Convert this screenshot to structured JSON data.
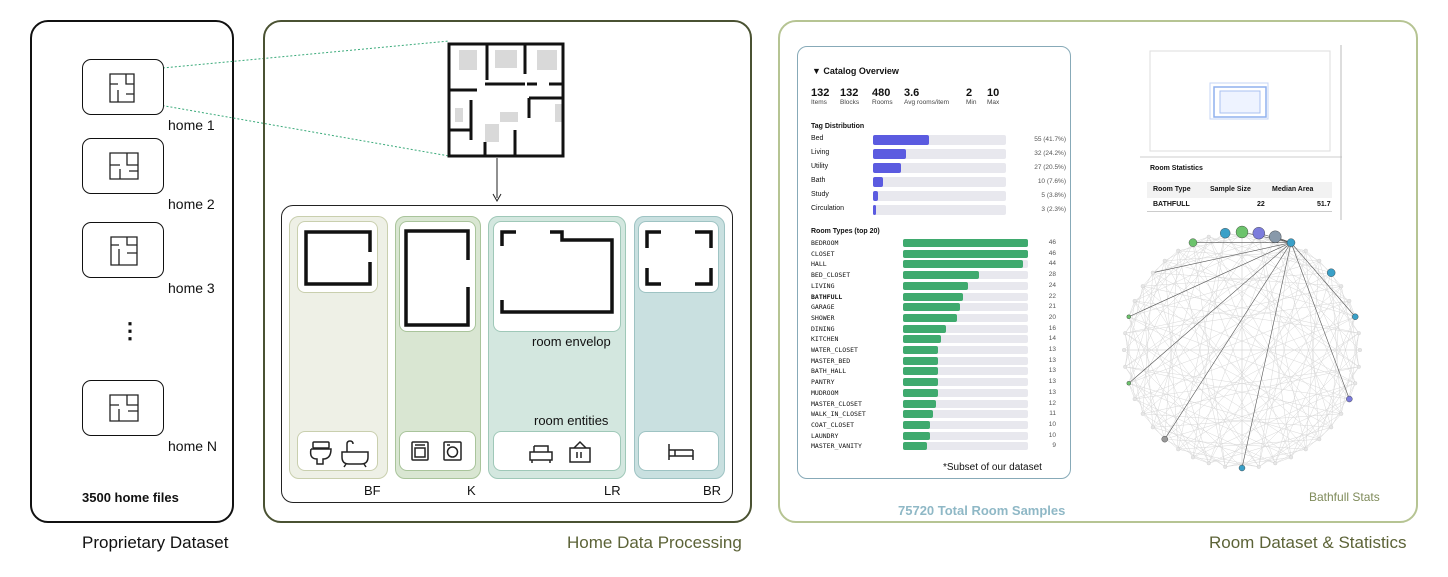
{
  "panel1": {
    "homes": [
      "home 1",
      "home 2",
      "home 3",
      "home N"
    ],
    "ellipsis": "⋮",
    "count_label": "3500 home files",
    "title": "Proprietary Dataset"
  },
  "panel2": {
    "title": "Home Data Processing",
    "room_envelop": "room envelop",
    "room_entities": "room entities",
    "columns": [
      "BF",
      "K",
      "LR",
      "BR"
    ]
  },
  "panel3": {
    "title": "Room Dataset & Statistics",
    "total_samples": "75720 Total Room Samples",
    "bathfull_caption": "Bathfull Stats",
    "catalog": {
      "heading": "▼ Catalog Overview",
      "stats": [
        {
          "value": "132",
          "label": "Items"
        },
        {
          "value": "132",
          "label": "Blocks"
        },
        {
          "value": "480",
          "label": "Rooms"
        },
        {
          "value": "3.6",
          "label": "Avg rooms/item"
        },
        {
          "value": "2",
          "label": "Min"
        },
        {
          "value": "10",
          "label": "Max"
        }
      ],
      "tag_heading": "Tag Distribution",
      "tags": [
        {
          "name": "Bed",
          "value": 55,
          "label": "55 (41.7%)"
        },
        {
          "name": "Living",
          "value": 32,
          "label": "32 (24.2%)"
        },
        {
          "name": "Utility",
          "value": 27,
          "label": "27 (20.5%)"
        },
        {
          "name": "Bath",
          "value": 10,
          "label": "10 (7.6%)"
        },
        {
          "name": "Study",
          "value": 5,
          "label": "5 (3.8%)"
        },
        {
          "name": "Circulation",
          "value": 3,
          "label": "3 (2.3%)"
        }
      ],
      "types_heading": "Room Types (top 20)",
      "types": [
        {
          "name": "BEDROOM",
          "value": 46
        },
        {
          "name": "CLOSET",
          "value": 46
        },
        {
          "name": "HALL",
          "value": 44
        },
        {
          "name": "BED_CLOSET",
          "value": 28
        },
        {
          "name": "LIVING",
          "value": 24
        },
        {
          "name": "BATHFULL",
          "value": 22
        },
        {
          "name": "GARAGE",
          "value": 21
        },
        {
          "name": "SHOWER",
          "value": 20
        },
        {
          "name": "DINING",
          "value": 16
        },
        {
          "name": "KITCHEN",
          "value": 14
        },
        {
          "name": "WATER_CLOSET",
          "value": 13
        },
        {
          "name": "MASTER_BED",
          "value": 13
        },
        {
          "name": "BATH_HALL",
          "value": 13
        },
        {
          "name": "PANTRY",
          "value": 13
        },
        {
          "name": "MUDROOM",
          "value": 13
        },
        {
          "name": "MASTER_CLOSET",
          "value": 12
        },
        {
          "name": "WALK_IN_CLOSET",
          "value": 11
        },
        {
          "name": "COAT_CLOSET",
          "value": 10
        },
        {
          "name": "LAUNDRY",
          "value": 10
        },
        {
          "name": "MASTER_VANITY",
          "value": 9
        }
      ],
      "footnote": "*Subset of our dataset"
    },
    "room_stats": {
      "heading": "Room Statistics",
      "headers": [
        "Room Type",
        "Sample Size",
        "Median Area"
      ],
      "row": [
        "BATHFULL",
        "22",
        "51.7"
      ]
    }
  },
  "colors": {
    "tag_bar": "#5b5be0",
    "type_bar": "#3faa6e",
    "track": "#e8e8ee",
    "bf_fill": "#eef0e6",
    "k_fill": "#d9e6d2",
    "lr_fill": "#d3e7df",
    "br_fill": "#c9e0e0",
    "total_text": "#8fb8c6",
    "caption_text": "#7f8b5a"
  }
}
